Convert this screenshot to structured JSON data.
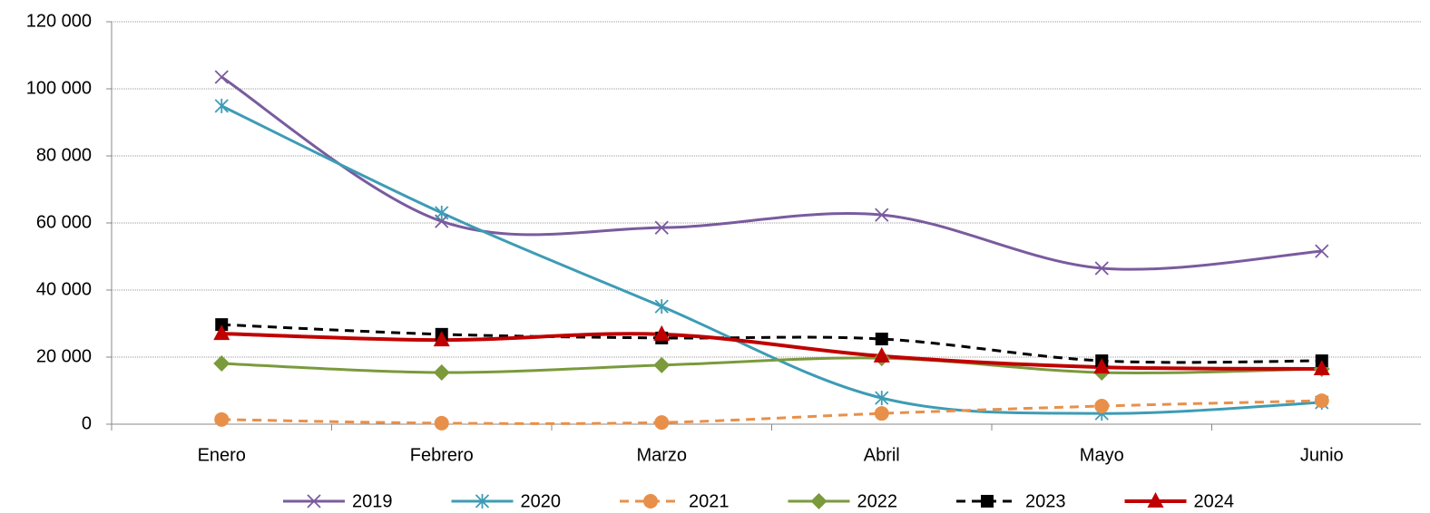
{
  "chart_data": {
    "type": "line",
    "categories": [
      "Enero",
      "Febrero",
      "Marzo",
      "Abril",
      "Mayo",
      "Junio"
    ],
    "series": [
      {
        "name": "2019",
        "color": "#7a5b9e",
        "values": [
          103500,
          60500,
          58600,
          62400,
          46500,
          51600
        ]
      },
      {
        "name": "2020",
        "color": "#3d9cb5",
        "values": [
          94900,
          63000,
          35100,
          7800,
          3200,
          6500
        ]
      },
      {
        "name": "2021",
        "color": "#e8904a",
        "values": [
          1400,
          300,
          500,
          3200,
          5400,
          7000
        ]
      },
      {
        "name": "2022",
        "color": "#7a9a3c",
        "values": [
          18100,
          15400,
          17600,
          19700,
          15400,
          16500
        ]
      },
      {
        "name": "2023",
        "color": "#000000",
        "values": [
          29700,
          26800,
          25700,
          25400,
          18900,
          18900
        ]
      },
      {
        "name": "2024",
        "color": "#c00000",
        "values": [
          27000,
          25100,
          26800,
          20300,
          17000,
          16500
        ]
      }
    ],
    "ylim": [
      0,
      120000
    ],
    "yticks": [
      0,
      {
        "value": 20000,
        "label": "20 000"
      },
      {
        "value": 40000,
        "label": "40 000"
      },
      {
        "value": 60000,
        "label": "60 000"
      },
      {
        "value": 80000,
        "label": "80 000"
      },
      {
        "value": 100000,
        "label": "100 000"
      },
      {
        "value": 120000,
        "label": "120 000"
      }
    ],
    "grid": true,
    "smooth": true,
    "legend": "bottom"
  }
}
